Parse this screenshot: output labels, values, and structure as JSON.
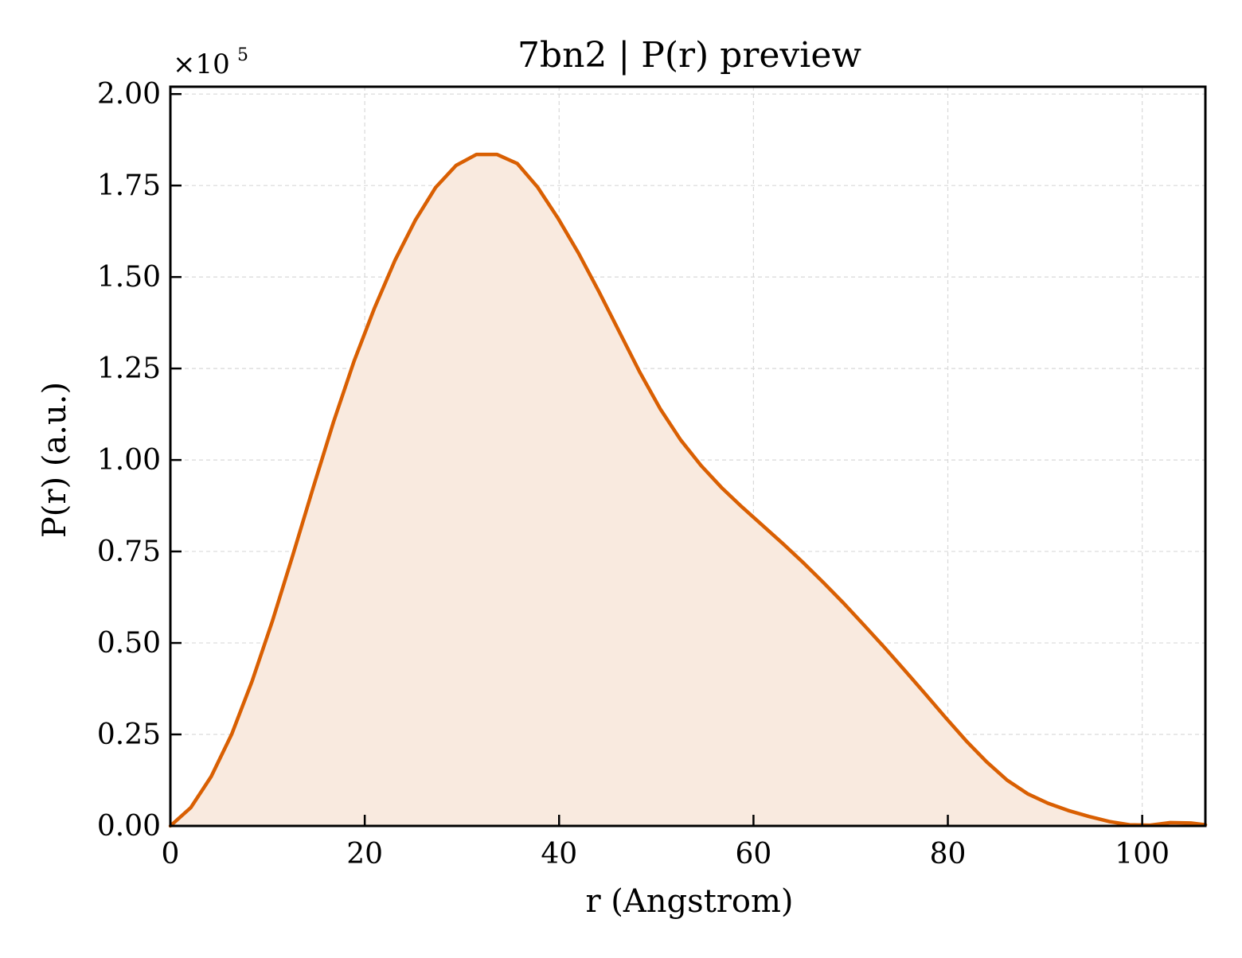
{
  "chart_data": {
    "type": "area",
    "title": "7bn2 | P(r) preview",
    "xlabel": "r (Angstrom)",
    "ylabel": "P(r) (a.u.)",
    "y_multiplier_label": "×10",
    "y_multiplier_exponent": "5",
    "xlim": [
      0,
      106.5
    ],
    "ylim": [
      0,
      2.02
    ],
    "x_ticks": [
      0,
      20,
      40,
      60,
      80,
      100
    ],
    "x_tick_labels": [
      "0",
      "20",
      "40",
      "60",
      "80",
      "100"
    ],
    "y_ticks": [
      0,
      0.25,
      0.5,
      0.75,
      1.0,
      1.25,
      1.5,
      1.75,
      2.0
    ],
    "y_tick_labels": [
      "0.00",
      "0.25",
      "0.50",
      "0.75",
      "1.00",
      "1.25",
      "1.50",
      "1.75",
      "2.00"
    ],
    "grid": true,
    "colors": {
      "line": "#d95f02",
      "fill": "#f9eadf",
      "grid": "#d9d9d9",
      "axis": "#000000"
    },
    "series": [
      {
        "x": [
          0,
          2.1,
          4.2,
          6.3,
          8.4,
          10.5,
          12.6,
          14.7,
          16.8,
          18.9,
          21.0,
          23.1,
          25.2,
          27.3,
          29.4,
          31.5,
          33.6,
          35.7,
          37.8,
          39.9,
          42.0,
          44.1,
          46.2,
          48.3,
          50.4,
          52.5,
          54.6,
          56.7,
          58.8,
          60.9,
          63.0,
          65.1,
          67.2,
          69.3,
          71.4,
          73.5,
          75.6,
          77.7,
          79.8,
          81.9,
          84.0,
          86.1,
          88.2,
          90.3,
          92.4,
          94.5,
          96.6,
          98.7,
          100.8,
          102.9,
          105.0,
          106.5
        ],
        "values": [
          0.0,
          0.05,
          0.135,
          0.25,
          0.395,
          0.56,
          0.74,
          0.925,
          1.105,
          1.27,
          1.415,
          1.545,
          1.655,
          1.745,
          1.805,
          1.835,
          1.835,
          1.81,
          1.745,
          1.66,
          1.565,
          1.46,
          1.35,
          1.24,
          1.14,
          1.055,
          0.985,
          0.925,
          0.872,
          0.822,
          0.772,
          0.72,
          0.665,
          0.608,
          0.548,
          0.487,
          0.424,
          0.36,
          0.295,
          0.232,
          0.175,
          0.125,
          0.088,
          0.062,
          0.042,
          0.026,
          0.012,
          0.003,
          0.002,
          0.009,
          0.008,
          0.003
        ]
      }
    ]
  }
}
